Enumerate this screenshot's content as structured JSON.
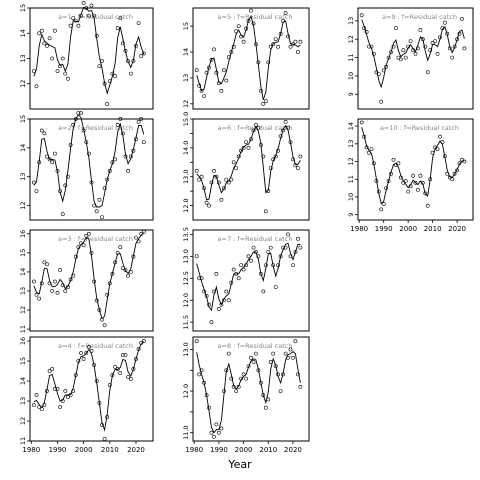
{
  "figure": {
    "xlabel": "Year"
  },
  "chart_data": [
    {
      "type": "line",
      "title": "a=1  :  f=Residual catch",
      "ylim": [
        11,
        15
      ],
      "yticks": [
        12,
        13,
        14,
        15
      ],
      "x_from": 1981,
      "x_step": 1,
      "values": [
        12.5,
        11.9,
        14.0,
        14.1,
        13.6,
        13.5,
        13.8,
        13.0,
        14.1,
        12.5,
        12.7,
        13.0,
        12.4,
        12.2,
        14.3,
        14.6,
        14.5,
        14.3,
        14.7,
        15.2,
        15.0,
        14.7,
        15.1,
        14.7,
        13.9,
        12.7,
        12.9,
        12.0,
        11.2,
        12.1,
        12.4,
        12.3,
        14.2,
        14.6,
        13.6,
        13.3,
        12.9,
        12.4,
        12.9,
        13.5,
        14.4,
        13.1,
        13.2
      ]
    },
    {
      "type": "line",
      "title": "a=2  :  f=Residual catch",
      "ylim": [
        11.5,
        15
      ],
      "yticks": [
        12,
        13,
        14,
        15
      ],
      "x_from": 1981,
      "x_step": 1,
      "values": [
        12.8,
        12.5,
        13.5,
        14.6,
        14.5,
        13.7,
        13.6,
        13.5,
        13.8,
        13.2,
        12.5,
        11.7,
        12.7,
        13.0,
        14.1,
        14.8,
        15.0,
        15.2,
        15.2,
        14.6,
        14.2,
        13.8,
        12.8,
        12.0,
        11.8,
        12.2,
        11.6,
        12.6,
        12.9,
        13.2,
        13.5,
        13.6,
        14.8,
        15.0,
        14.5,
        13.7,
        13.2,
        13.7,
        13.9,
        14.3,
        14.9,
        15.0,
        14.2
      ]
    },
    {
      "type": "line",
      "title": "a=3  :  f=Residual catch",
      "ylim": [
        10.9,
        16.2
      ],
      "yticks": [
        11,
        12,
        13,
        14,
        15,
        16
      ],
      "x_from": 1981,
      "x_step": 1,
      "values": [
        13.5,
        12.8,
        12.6,
        13.4,
        14.5,
        14.4,
        13.4,
        13.0,
        13.5,
        12.9,
        14.1,
        13.3,
        13.0,
        13.2,
        13.6,
        13.8,
        14.8,
        15.3,
        15.5,
        15.4,
        15.9,
        16.0,
        15.0,
        13.5,
        12.5,
        12.0,
        11.5,
        11.2,
        12.8,
        13.4,
        13.9,
        14.5,
        15.0,
        15.3,
        14.2,
        14.1,
        13.8,
        14.0,
        14.8,
        15.8,
        15.6,
        16.0,
        16.1
      ]
    },
    {
      "type": "line",
      "title": "a=4  :  f=Residual catch",
      "ylim": [
        11,
        16.2
      ],
      "yticks": [
        11,
        12,
        13,
        14,
        15,
        16
      ],
      "x_from": 1981,
      "x_step": 1,
      "values": [
        12.8,
        13.3,
        12.7,
        12.6,
        12.8,
        13.5,
        14.5,
        14.6,
        13.6,
        13.6,
        12.7,
        13.0,
        13.5,
        13.2,
        13.3,
        13.5,
        14.3,
        15.0,
        15.4,
        15.1,
        15.4,
        15.7,
        15.5,
        14.8,
        14.0,
        12.9,
        11.8,
        11.1,
        12.2,
        13.8,
        14.3,
        14.7,
        14.6,
        14.4,
        15.3,
        15.3,
        14.2,
        14.1,
        14.6,
        15.1,
        15.6,
        15.9,
        16.0
      ]
    },
    {
      "type": "line",
      "title": "a=5  :  f=Residual catch",
      "ylim": [
        11.8,
        15.7
      ],
      "yticks": [
        12,
        13,
        14,
        15
      ],
      "x_from": 1981,
      "x_step": 1,
      "values": [
        13.3,
        12.7,
        12.5,
        12.3,
        13.2,
        13.4,
        13.7,
        14.1,
        13.2,
        12.8,
        12.5,
        13.3,
        12.9,
        13.8,
        14.0,
        14.2,
        14.8,
        15.0,
        14.6,
        14.4,
        14.9,
        15.2,
        15.6,
        15.1,
        14.3,
        13.6,
        12.5,
        12.0,
        12.1,
        13.6,
        14.2,
        14.3,
        14.5,
        14.2,
        14.7,
        15.2,
        15.5,
        14.6,
        14.2,
        14.3,
        14.4,
        14.0,
        14.4
      ]
    },
    {
      "type": "line",
      "title": "a=6  :  f=Residual catch",
      "ylim": [
        11.5,
        15
      ],
      "yticks": [
        12,
        12.5,
        13,
        13.5,
        14,
        14.5,
        15
      ],
      "ytick_labels": [
        "12.0",
        "",
        "13.0",
        "",
        "14.0",
        "",
        "15.0"
      ],
      "x_from": 1981,
      "x_step": 1,
      "values": [
        13.2,
        12.9,
        13.0,
        12.6,
        12.1,
        12.0,
        12.8,
        13.2,
        13.0,
        12.8,
        12.2,
        12.6,
        12.9,
        12.8,
        12.9,
        13.5,
        13.3,
        13.7,
        13.9,
        14.0,
        14.2,
        14.0,
        14.3,
        14.6,
        14.8,
        14.7,
        14.1,
        13.7,
        11.8,
        12.5,
        13.3,
        13.6,
        13.7,
        13.9,
        14.4,
        14.6,
        14.9,
        14.7,
        14.2,
        13.6,
        13.4,
        13.3,
        13.7
      ]
    },
    {
      "type": "line",
      "title": "a=7  :  f=Residual catch",
      "ylim": [
        11.3,
        13.6
      ],
      "yticks": [
        11.5,
        12,
        12.5,
        13,
        13.5
      ],
      "ytick_labels": [
        "11.5",
        "12.0",
        "12.5",
        "13.0",
        "13.5"
      ],
      "x_from": 1981,
      "x_step": 1,
      "values": [
        13.0,
        12.5,
        12.5,
        12.2,
        12.1,
        11.9,
        11.5,
        12.2,
        12.6,
        11.8,
        11.9,
        12.0,
        12.2,
        12.0,
        12.4,
        12.7,
        12.6,
        12.5,
        12.8,
        12.7,
        12.8,
        13.0,
        12.9,
        13.2,
        13.1,
        13.0,
        12.6,
        12.2,
        12.8,
        13.1,
        13.2,
        12.8,
        12.3,
        12.8,
        13.0,
        13.2,
        13.2,
        13.5,
        13.0,
        12.8,
        13.1,
        13.4,
        13.2
      ]
    },
    {
      "type": "line",
      "title": "a=8  :  f=Residual catch",
      "ylim": [
        10.8,
        13.3
      ],
      "yticks": [
        11,
        11.5,
        12,
        12.5,
        13
      ],
      "ytick_labels": [
        "11.0",
        "",
        "12.0",
        "",
        "13.0"
      ],
      "x_from": 1981,
      "x_step": 1,
      "values": [
        13.2,
        12.4,
        12.5,
        12.2,
        11.9,
        11.6,
        11.0,
        10.9,
        11.2,
        11.0,
        11.1,
        12.0,
        12.5,
        12.9,
        12.3,
        12.1,
        12.0,
        12.1,
        12.3,
        12.4,
        12.3,
        12.6,
        12.8,
        12.7,
        12.9,
        12.5,
        12.2,
        11.9,
        11.6,
        11.8,
        12.7,
        12.9,
        12.6,
        12.4,
        12.0,
        12.4,
        12.9,
        12.8,
        13.0,
        12.8,
        13.2,
        12.4,
        12.1
      ]
    },
    {
      "type": "line",
      "title": "a=9  :  f=Residual catch",
      "ylim": [
        8.2,
        13.7
      ],
      "yticks": [
        9,
        10,
        11,
        12,
        13
      ],
      "x_from": 1981,
      "x_step": 1,
      "values": [
        13.3,
        12.6,
        12.4,
        11.6,
        11.6,
        11.2,
        10.2,
        10.1,
        8.6,
        10.3,
        10.5,
        11.0,
        11.3,
        11.6,
        12.6,
        11.0,
        10.9,
        11.4,
        11.0,
        11.6,
        11.9,
        11.4,
        11.2,
        11.5,
        12.5,
        12.0,
        11.6,
        10.2,
        11.4,
        11.8,
        11.9,
        11.2,
        12.1,
        12.6,
        12.9,
        12.3,
        11.5,
        11.0,
        11.6,
        12.0,
        12.3,
        13.1,
        11.5
      ]
    },
    {
      "type": "line",
      "title": "a=10  :  f=Residual catch",
      "ylim": [
        8.7,
        14.4
      ],
      "yticks": [
        9,
        10,
        11,
        12,
        13,
        14
      ],
      "x_from": 1981,
      "x_step": 1,
      "values": [
        14.2,
        13.4,
        12.8,
        12.5,
        12.7,
        11.9,
        10.9,
        10.3,
        9.3,
        9.6,
        10.5,
        10.9,
        11.3,
        12.1,
        11.8,
        11.9,
        11.1,
        10.8,
        10.9,
        10.3,
        10.6,
        11.2,
        10.8,
        10.4,
        11.2,
        10.8,
        10.2,
        9.5,
        11.0,
        12.5,
        12.8,
        12.7,
        13.4,
        13.1,
        12.3,
        11.3,
        11.1,
        11.0,
        11.3,
        11.5,
        11.9,
        12.1,
        12.0
      ]
    }
  ]
}
